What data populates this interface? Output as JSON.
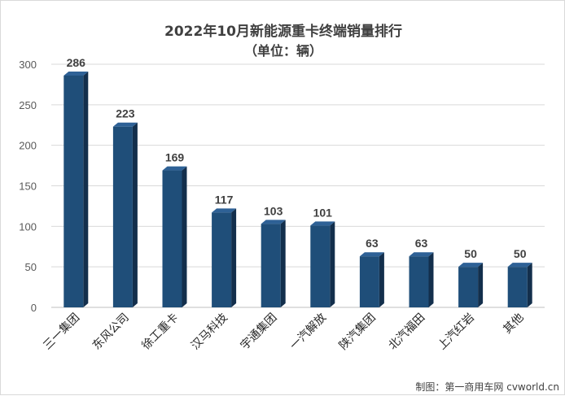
{
  "chart_data": {
    "type": "bar",
    "title": "2022年10月新能源重卡终端销量排行",
    "subtitle": "（单位：辆）",
    "categories": [
      "三一集团",
      "东风公司",
      "徐工重卡",
      "汉马科技",
      "宇通集团",
      "一汽解放",
      "陕汽集团",
      "北汽福田",
      "上汽红岩",
      "其他"
    ],
    "values": [
      286,
      223,
      169,
      117,
      103,
      101,
      63,
      63,
      50,
      50
    ],
    "ylim": [
      0,
      300
    ],
    "yticks": [
      0,
      50,
      100,
      150,
      200,
      250,
      300
    ],
    "grid": true,
    "legend": "none",
    "bar_color": "#1f4e79",
    "bar_side_color": "#132f4c",
    "bar_top_color": "#2e6196"
  },
  "footer": {
    "credit": "制图：第一商用车网 cvworld.cn"
  }
}
